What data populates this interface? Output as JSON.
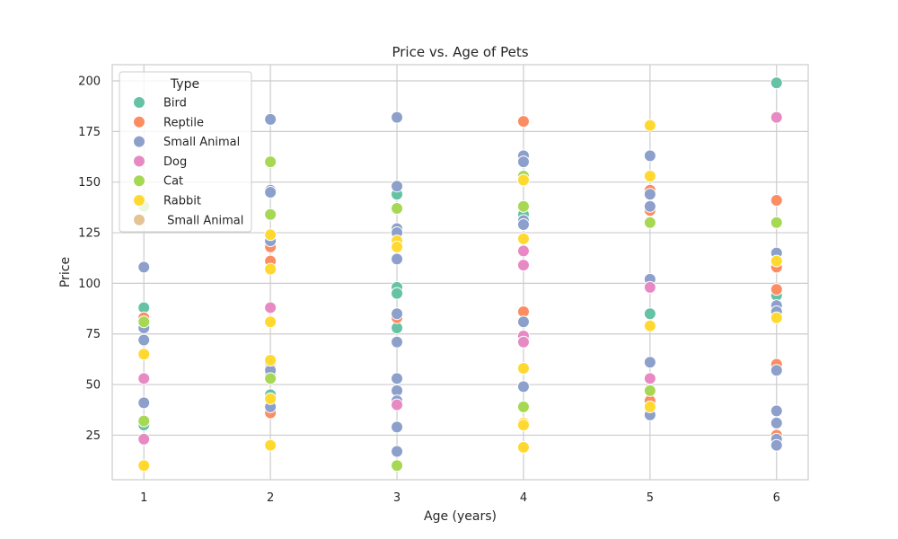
{
  "chart_data": {
    "type": "scatter",
    "title": "Price vs. Age of Pets",
    "xlabel": "Age (years)",
    "ylabel": "Price",
    "xlim": [
      0.75,
      6.25
    ],
    "ylim": [
      3,
      208
    ],
    "xticks": [
      1,
      2,
      3,
      4,
      5,
      6
    ],
    "yticks": [
      25,
      50,
      75,
      100,
      125,
      150,
      175,
      200
    ],
    "grid": true,
    "legend": {
      "title": "Type",
      "position": "top-left"
    },
    "series": [
      {
        "name": "Bird",
        "color": "#66c2a5",
        "points": [
          {
            "x": 1,
            "y": 88
          },
          {
            "x": 1,
            "y": 30
          },
          {
            "x": 2,
            "y": 45
          },
          {
            "x": 2,
            "y": 60
          },
          {
            "x": 2,
            "y": 55
          },
          {
            "x": 3,
            "y": 144
          },
          {
            "x": 3,
            "y": 98
          },
          {
            "x": 3,
            "y": 95
          },
          {
            "x": 3,
            "y": 78
          },
          {
            "x": 4,
            "y": 134
          },
          {
            "x": 5,
            "y": 85
          },
          {
            "x": 6,
            "y": 199
          },
          {
            "x": 6,
            "y": 94
          }
        ]
      },
      {
        "name": "Reptile",
        "color": "#fc8d62",
        "points": [
          {
            "x": 1,
            "y": 83
          },
          {
            "x": 2,
            "y": 118
          },
          {
            "x": 2,
            "y": 111
          },
          {
            "x": 2,
            "y": 58
          },
          {
            "x": 2,
            "y": 36
          },
          {
            "x": 3,
            "y": 83
          },
          {
            "x": 4,
            "y": 180
          },
          {
            "x": 4,
            "y": 86
          },
          {
            "x": 5,
            "y": 146
          },
          {
            "x": 5,
            "y": 136
          },
          {
            "x": 5,
            "y": 42
          },
          {
            "x": 6,
            "y": 141
          },
          {
            "x": 6,
            "y": 108
          },
          {
            "x": 6,
            "y": 97
          },
          {
            "x": 6,
            "y": 60
          },
          {
            "x": 6,
            "y": 25
          }
        ]
      },
      {
        "name": "Small Animal",
        "color": "#8da0cb",
        "points": [
          {
            "x": 1,
            "y": 108
          },
          {
            "x": 1,
            "y": 78
          },
          {
            "x": 1,
            "y": 72
          },
          {
            "x": 1,
            "y": 41
          },
          {
            "x": 2,
            "y": 181
          },
          {
            "x": 2,
            "y": 146
          },
          {
            "x": 2,
            "y": 145
          },
          {
            "x": 2,
            "y": 121
          },
          {
            "x": 2,
            "y": 57
          },
          {
            "x": 2,
            "y": 39
          },
          {
            "x": 3,
            "y": 182
          },
          {
            "x": 3,
            "y": 148
          },
          {
            "x": 3,
            "y": 127
          },
          {
            "x": 3,
            "y": 125
          },
          {
            "x": 3,
            "y": 112
          },
          {
            "x": 3,
            "y": 85
          },
          {
            "x": 3,
            "y": 71
          },
          {
            "x": 3,
            "y": 53
          },
          {
            "x": 3,
            "y": 47
          },
          {
            "x": 3,
            "y": 42
          },
          {
            "x": 3,
            "y": 29
          },
          {
            "x": 3,
            "y": 17
          },
          {
            "x": 4,
            "y": 163
          },
          {
            "x": 4,
            "y": 160
          },
          {
            "x": 4,
            "y": 131
          },
          {
            "x": 4,
            "y": 129
          },
          {
            "x": 4,
            "y": 81
          },
          {
            "x": 4,
            "y": 49
          },
          {
            "x": 5,
            "y": 163
          },
          {
            "x": 5,
            "y": 144
          },
          {
            "x": 5,
            "y": 138
          },
          {
            "x": 5,
            "y": 102
          },
          {
            "x": 5,
            "y": 61
          },
          {
            "x": 5,
            "y": 35
          },
          {
            "x": 6,
            "y": 115
          },
          {
            "x": 6,
            "y": 89
          },
          {
            "x": 6,
            "y": 86
          },
          {
            "x": 6,
            "y": 57
          },
          {
            "x": 6,
            "y": 37
          },
          {
            "x": 6,
            "y": 31
          },
          {
            "x": 6,
            "y": 23
          },
          {
            "x": 6,
            "y": 20
          }
        ]
      },
      {
        "name": "Dog",
        "color": "#e78ac3",
        "points": [
          {
            "x": 1,
            "y": 53
          },
          {
            "x": 1,
            "y": 23
          },
          {
            "x": 2,
            "y": 88
          },
          {
            "x": 3,
            "y": 40
          },
          {
            "x": 4,
            "y": 116
          },
          {
            "x": 4,
            "y": 109
          },
          {
            "x": 4,
            "y": 74
          },
          {
            "x": 4,
            "y": 71
          },
          {
            "x": 5,
            "y": 98
          },
          {
            "x": 5,
            "y": 53
          },
          {
            "x": 6,
            "y": 182
          }
        ]
      },
      {
        "name": "Cat",
        "color": "#a6d854",
        "points": [
          {
            "x": 1,
            "y": 138
          },
          {
            "x": 1,
            "y": 81
          },
          {
            "x": 1,
            "y": 32
          },
          {
            "x": 2,
            "y": 160
          },
          {
            "x": 2,
            "y": 134
          },
          {
            "x": 2,
            "y": 53
          },
          {
            "x": 3,
            "y": 137
          },
          {
            "x": 3,
            "y": 10
          },
          {
            "x": 4,
            "y": 153
          },
          {
            "x": 4,
            "y": 138
          },
          {
            "x": 4,
            "y": 39
          },
          {
            "x": 5,
            "y": 130
          },
          {
            "x": 5,
            "y": 47
          },
          {
            "x": 6,
            "y": 130
          }
        ]
      },
      {
        "name": "Rabbit",
        "color": "#ffd92f",
        "points": [
          {
            "x": 1,
            "y": 65
          },
          {
            "x": 1,
            "y": 10
          },
          {
            "x": 2,
            "y": 124
          },
          {
            "x": 2,
            "y": 107
          },
          {
            "x": 2,
            "y": 81
          },
          {
            "x": 2,
            "y": 62
          },
          {
            "x": 2,
            "y": 43
          },
          {
            "x": 2,
            "y": 20
          },
          {
            "x": 3,
            "y": 121
          },
          {
            "x": 3,
            "y": 118
          },
          {
            "x": 4,
            "y": 151
          },
          {
            "x": 4,
            "y": 122
          },
          {
            "x": 4,
            "y": 58
          },
          {
            "x": 4,
            "y": 31
          },
          {
            "x": 4,
            "y": 30
          },
          {
            "x": 4,
            "y": 19
          },
          {
            "x": 5,
            "y": 178
          },
          {
            "x": 5,
            "y": 153
          },
          {
            "x": 5,
            "y": 79
          },
          {
            "x": 5,
            "y": 39
          },
          {
            "x": 6,
            "y": 111
          },
          {
            "x": 6,
            "y": 83
          }
        ]
      },
      {
        "name": " Small Animal",
        "color": "#e5c494",
        "points": []
      }
    ]
  }
}
